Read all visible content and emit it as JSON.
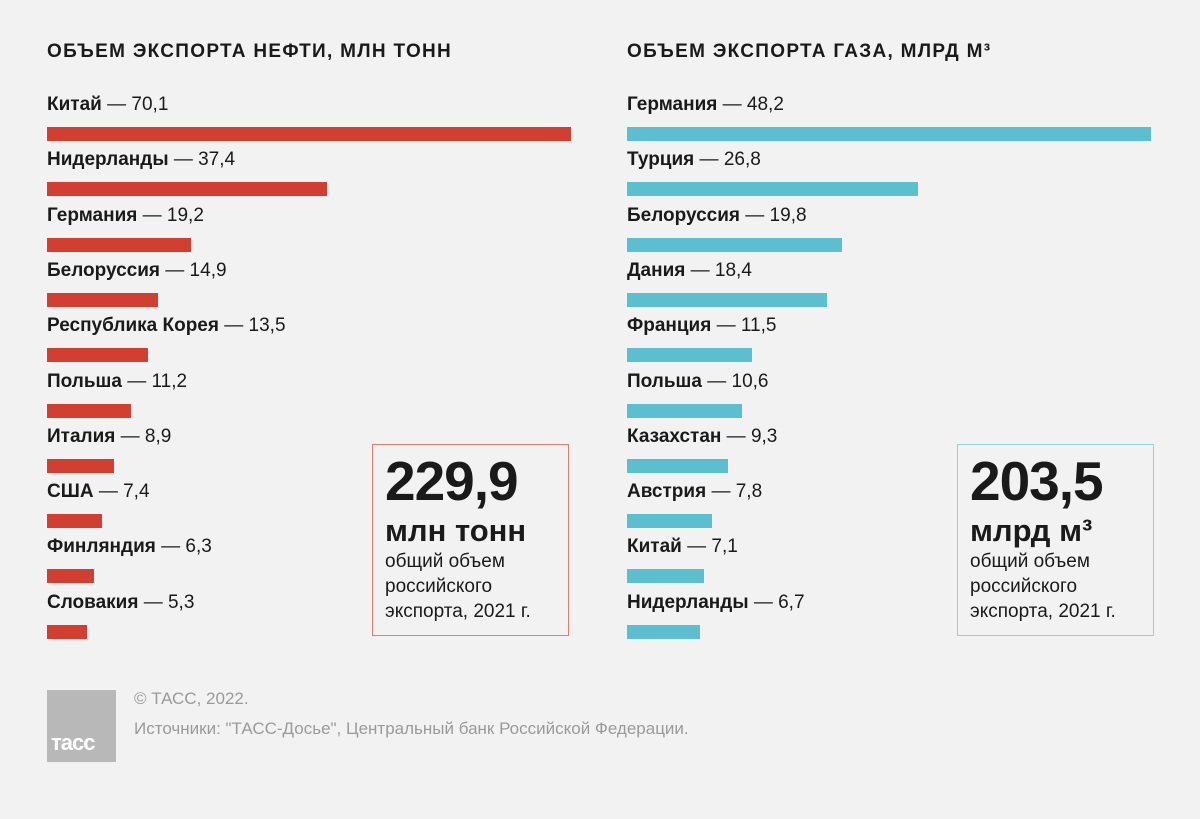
{
  "chart_data": [
    {
      "type": "bar",
      "orientation": "horizontal",
      "title": "ОБЪЕМ ЭКСПОРТА НЕФТИ, МЛН ТОНН",
      "categories": [
        "Китай",
        "Нидерланды",
        "Германия",
        "Белоруссия",
        "Республика Корея",
        "Польша",
        "Италия",
        "США",
        "Финляндия",
        "Словакия"
      ],
      "values": [
        70.1,
        37.4,
        19.2,
        14.9,
        13.5,
        11.2,
        8.9,
        7.4,
        6.3,
        5.3
      ],
      "color": "#d23f31",
      "summary": {
        "value": "229,9",
        "unit": "млн тонн",
        "caption": [
          "общий объем",
          "российского",
          "экспорта, 2021 г."
        ]
      }
    },
    {
      "type": "bar",
      "orientation": "horizontal",
      "title": "ОБЪЕМ ЭКСПОРТА ГАЗА, МЛРД М³",
      "categories": [
        "Германия",
        "Турция",
        "Белоруссия",
        "Дания",
        "Франция",
        "Польша",
        "Казахстан",
        "Австрия",
        "Китай",
        "Нидерланды"
      ],
      "values": [
        48.2,
        26.8,
        19.8,
        18.4,
        11.5,
        10.6,
        9.3,
        7.8,
        7.1,
        6.7
      ],
      "color": "#5bbfcf",
      "summary": {
        "value": "203,5",
        "unit": "млрд м³",
        "caption": [
          "общий объем",
          "российского",
          "экспорта, 2021 г."
        ]
      }
    }
  ],
  "footer": {
    "copyright": "© ТАСС, 2022.",
    "sources": "Источники: \"ТАСС-Досье\", Центральный банк Российской Федерации.",
    "logo": "ТАСС"
  }
}
